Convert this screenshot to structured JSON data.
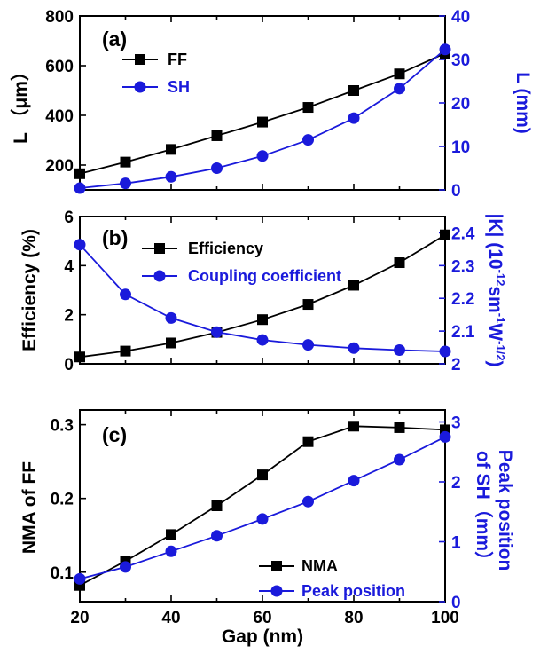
{
  "colors": {
    "black_series": "#000000",
    "blue_series": "#1a1adb"
  },
  "chart_data": [
    {
      "type": "line",
      "panel_label": "(a)",
      "x": [
        20,
        30,
        40,
        50,
        60,
        70,
        80,
        90,
        100
      ],
      "xlim": [
        20,
        100
      ],
      "ylabel_left": "L （μm）",
      "ylabel_right": "L (mm)",
      "ylim_left": [
        100,
        800
      ],
      "ylim_right": [
        0,
        40
      ],
      "yticks_left": [
        200,
        400,
        600,
        800
      ],
      "yticks_right": [
        0,
        10,
        20,
        30,
        40
      ],
      "legend_position": "top-left",
      "series": [
        {
          "name": "FF",
          "axis": "left",
          "marker": "square",
          "color": "#000000",
          "values": [
            165,
            212,
            263,
            318,
            373,
            432,
            500,
            567,
            650
          ]
        },
        {
          "name": "SH",
          "axis": "right",
          "marker": "circle",
          "color": "#1a1adb",
          "values": [
            0.4,
            1.5,
            3.0,
            5.0,
            7.8,
            11.5,
            16.5,
            23.3,
            32.3
          ]
        }
      ]
    },
    {
      "type": "line",
      "panel_label": "(b)",
      "x": [
        20,
        30,
        40,
        50,
        60,
        70,
        80,
        90,
        100
      ],
      "xlim": [
        20,
        100
      ],
      "ylabel_left": "Efficiency (%)",
      "ylabel_right_parts": {
        "main": "|K| (10",
        "exp1": "-12",
        "mid1": "sm",
        "exp2": "-1",
        "mid2": "W",
        "exp3": "-1/2",
        "end": ")"
      },
      "ylim_left": [
        0,
        6
      ],
      "ylim_right": [
        2.0,
        2.45
      ],
      "yticks_left": [
        0,
        2,
        4,
        6
      ],
      "yticks_right": [
        2.0,
        2.1,
        2.2,
        2.3,
        2.4
      ],
      "legend_position": "top",
      "series": [
        {
          "name": "Efficiency",
          "axis": "left",
          "marker": "square",
          "color": "#000000",
          "values": [
            0.28,
            0.52,
            0.85,
            1.28,
            1.8,
            2.42,
            3.2,
            4.12,
            5.25
          ]
        },
        {
          "name": "Coupling coefficient",
          "axis": "right",
          "marker": "circle",
          "color": "#1a1adb",
          "values": [
            2.364,
            2.212,
            2.14,
            2.097,
            2.073,
            2.058,
            2.048,
            2.042,
            2.038
          ]
        }
      ]
    },
    {
      "type": "line",
      "panel_label": "(c)",
      "x": [
        20,
        30,
        40,
        50,
        60,
        70,
        80,
        90,
        100
      ],
      "xlim": [
        20,
        100
      ],
      "xticks": [
        20,
        40,
        60,
        80,
        100
      ],
      "xlabel": "Gap (nm)",
      "ylabel_left": "NMA of FF",
      "ylabel_right_line1": "Peak position",
      "ylabel_right_line2": "of SH（mm）",
      "ylim_left": [
        0.06,
        0.32
      ],
      "ylim_right": [
        0,
        3.2
      ],
      "yticks_left": [
        0.1,
        0.2,
        0.3
      ],
      "yticks_right": [
        0,
        1,
        2,
        3
      ],
      "legend_position": "bottom-right",
      "series": [
        {
          "name": "NMA",
          "axis": "left",
          "marker": "square",
          "color": "#000000",
          "values": [
            0.082,
            0.115,
            0.151,
            0.19,
            0.232,
            0.277,
            0.298,
            0.296,
            0.293
          ]
        },
        {
          "name": "Peak position",
          "axis": "right",
          "marker": "circle",
          "color": "#1a1adb",
          "values": [
            0.38,
            0.58,
            0.84,
            1.1,
            1.38,
            1.67,
            2.02,
            2.37,
            2.75
          ]
        }
      ]
    }
  ]
}
